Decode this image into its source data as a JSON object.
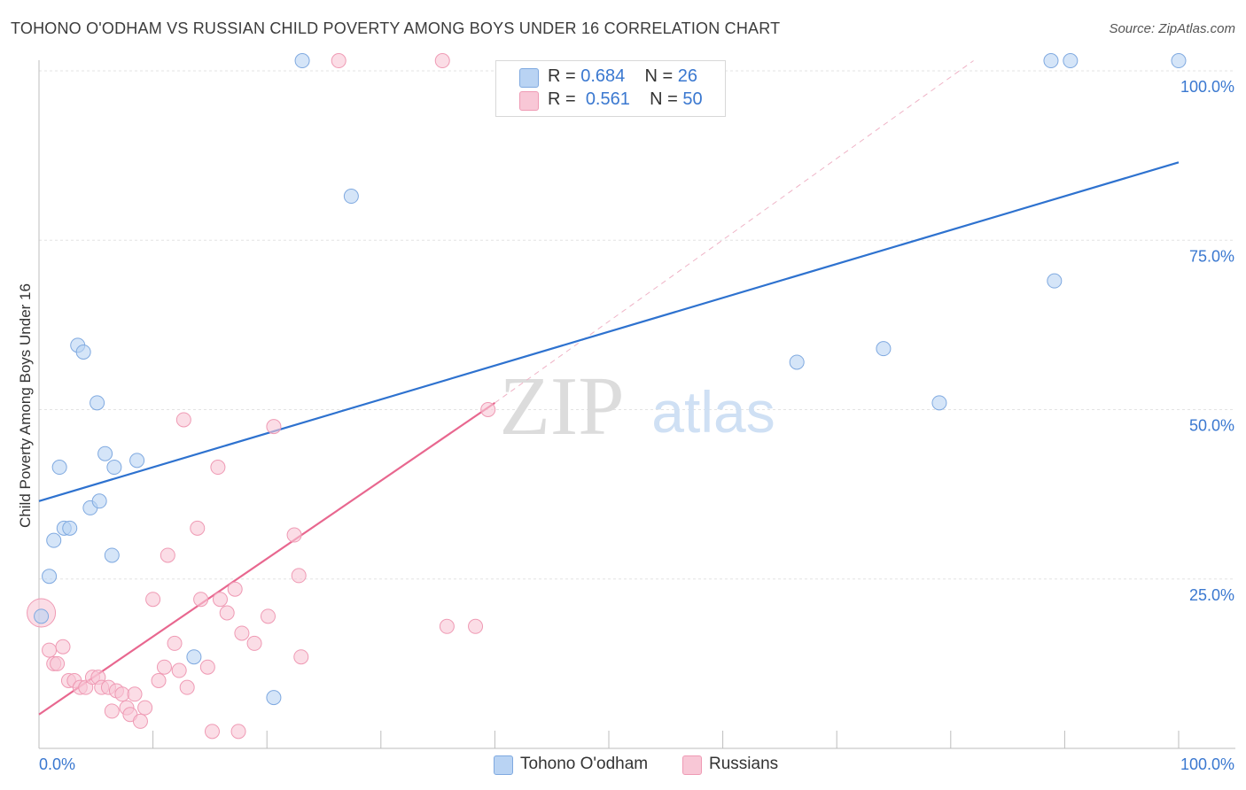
{
  "title": "TOHONO O'ODHAM VS RUSSIAN CHILD POVERTY AMONG BOYS UNDER 16 CORRELATION CHART",
  "source": "Source: ZipAtlas.com",
  "watermark": {
    "zip": "ZIP",
    "atlas": "atlas"
  },
  "legend": {
    "r_label": "R =",
    "n_label": "N =",
    "series": [
      {
        "name": "Tohono O'odham",
        "r": "0.684",
        "n": "26"
      },
      {
        "name": "Russians",
        "r": "0.561",
        "n": "50"
      }
    ]
  },
  "colors": {
    "blue_fill": "#b9d3f3",
    "blue_stroke": "#7fa9e0",
    "blue_line": "#2e72cf",
    "pink_fill": "#f8c7d6",
    "pink_stroke": "#ef9ab4",
    "pink_line": "#e8678f",
    "tick_label": "#3a78d0",
    "grid": "#e3e3e3"
  },
  "chart_data": {
    "type": "scatter",
    "xlabel": "",
    "ylabel": "Child Poverty Among Boys Under 16",
    "xlim": [
      0,
      100
    ],
    "ylim": [
      0,
      100
    ],
    "x_tick_labels": [
      "0.0%",
      "100.0%"
    ],
    "y_ticks": [
      {
        "value": 25,
        "label": "25.0%"
      },
      {
        "value": 50,
        "label": "50.0%"
      },
      {
        "value": 75,
        "label": "75.0%"
      },
      {
        "value": 100,
        "label": "100.0%"
      }
    ],
    "grid": true,
    "legend_position": "top-center",
    "series": [
      {
        "name": "Tohono O'odham",
        "color": "blue",
        "trend": {
          "x": [
            0,
            100
          ],
          "y": [
            36.5,
            86.5
          ]
        },
        "points": [
          {
            "x": 0.2,
            "y": 19.5
          },
          {
            "x": 0.9,
            "y": 25.4
          },
          {
            "x": 1.3,
            "y": 30.7
          },
          {
            "x": 1.8,
            "y": 41.5
          },
          {
            "x": 2.2,
            "y": 32.5
          },
          {
            "x": 2.7,
            "y": 32.5
          },
          {
            "x": 3.4,
            "y": 59.5
          },
          {
            "x": 3.9,
            "y": 58.5
          },
          {
            "x": 4.5,
            "y": 35.5
          },
          {
            "x": 5.1,
            "y": 51
          },
          {
            "x": 5.3,
            "y": 36.5
          },
          {
            "x": 5.8,
            "y": 43.5
          },
          {
            "x": 6.4,
            "y": 28.5
          },
          {
            "x": 6.6,
            "y": 41.5
          },
          {
            "x": 8.6,
            "y": 42.5
          },
          {
            "x": 13.6,
            "y": 13.5
          },
          {
            "x": 20.6,
            "y": 7.5
          },
          {
            "x": 23.1,
            "y": 101.5
          },
          {
            "x": 27.4,
            "y": 81.5
          },
          {
            "x": 66.5,
            "y": 57
          },
          {
            "x": 74.1,
            "y": 59
          },
          {
            "x": 79.0,
            "y": 51
          },
          {
            "x": 88.8,
            "y": 101.5
          },
          {
            "x": 89.1,
            "y": 69
          },
          {
            "x": 90.5,
            "y": 101.5
          },
          {
            "x": 100,
            "y": 101.5
          }
        ]
      },
      {
        "name": "Russians",
        "color": "pink",
        "trend": {
          "x": [
            0,
            40
          ],
          "y": [
            5,
            51
          ]
        },
        "trend_extended": {
          "x": [
            40,
            82
          ],
          "y": [
            51,
            101.5
          ]
        },
        "points": [
          {
            "x": 0.2,
            "y": 20,
            "big": true
          },
          {
            "x": 0.9,
            "y": 14.5
          },
          {
            "x": 1.3,
            "y": 12.5
          },
          {
            "x": 1.6,
            "y": 12.5
          },
          {
            "x": 2.1,
            "y": 15
          },
          {
            "x": 2.6,
            "y": 10
          },
          {
            "x": 3.1,
            "y": 10
          },
          {
            "x": 3.6,
            "y": 9
          },
          {
            "x": 4.1,
            "y": 9
          },
          {
            "x": 4.7,
            "y": 10.5
          },
          {
            "x": 5.2,
            "y": 10.5
          },
          {
            "x": 5.5,
            "y": 9
          },
          {
            "x": 6.1,
            "y": 9
          },
          {
            "x": 6.4,
            "y": 5.5
          },
          {
            "x": 6.8,
            "y": 8.5
          },
          {
            "x": 7.3,
            "y": 8
          },
          {
            "x": 7.7,
            "y": 6
          },
          {
            "x": 8.0,
            "y": 5
          },
          {
            "x": 8.4,
            "y": 8
          },
          {
            "x": 8.9,
            "y": 4
          },
          {
            "x": 9.3,
            "y": 6
          },
          {
            "x": 10.0,
            "y": 22
          },
          {
            "x": 10.5,
            "y": 10
          },
          {
            "x": 11.0,
            "y": 12
          },
          {
            "x": 11.3,
            "y": 28.5
          },
          {
            "x": 11.9,
            "y": 15.5
          },
          {
            "x": 12.3,
            "y": 11.5
          },
          {
            "x": 12.7,
            "y": 48.5
          },
          {
            "x": 13.0,
            "y": 9
          },
          {
            "x": 13.9,
            "y": 32.5
          },
          {
            "x": 14.2,
            "y": 22
          },
          {
            "x": 14.8,
            "y": 12
          },
          {
            "x": 15.2,
            "y": 2.5
          },
          {
            "x": 15.7,
            "y": 41.5
          },
          {
            "x": 15.9,
            "y": 22
          },
          {
            "x": 16.5,
            "y": 20
          },
          {
            "x": 17.2,
            "y": 23.5
          },
          {
            "x": 17.5,
            "y": 2.5
          },
          {
            "x": 17.8,
            "y": 17
          },
          {
            "x": 18.9,
            "y": 15.5
          },
          {
            "x": 20.1,
            "y": 19.5
          },
          {
            "x": 20.6,
            "y": 47.5
          },
          {
            "x": 22.4,
            "y": 31.5
          },
          {
            "x": 22.8,
            "y": 25.5
          },
          {
            "x": 23.0,
            "y": 13.5
          },
          {
            "x": 26.3,
            "y": 101.5
          },
          {
            "x": 35.4,
            "y": 101.5
          },
          {
            "x": 35.8,
            "y": 18
          },
          {
            "x": 38.3,
            "y": 18
          },
          {
            "x": 39.4,
            "y": 50
          }
        ]
      }
    ]
  }
}
